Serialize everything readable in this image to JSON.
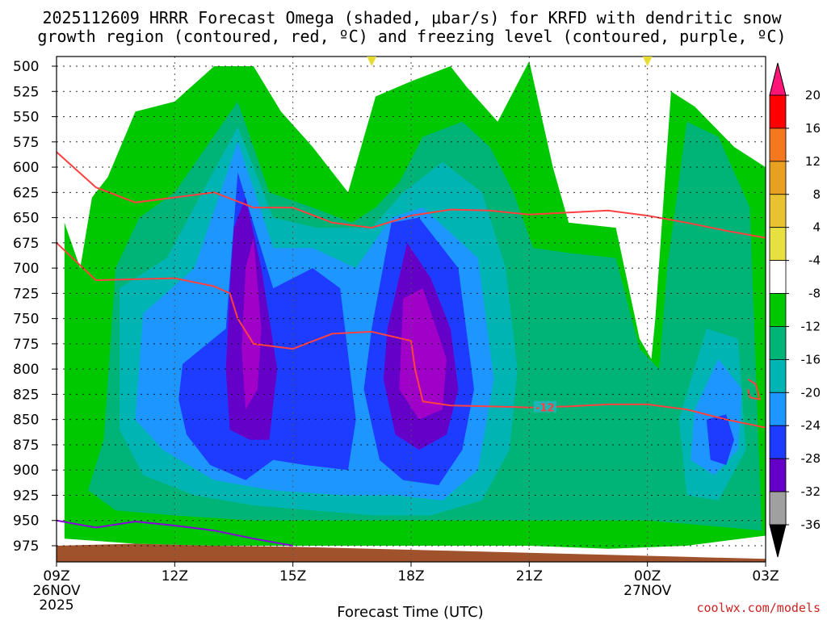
{
  "chart_data": {
    "type": "heatmap",
    "title_line1": "2025112609 HRRR Forecast Omega (shaded, μbar/s) for KRFD with dendritic snow",
    "title_line2": "growth region (contoured, red, ºC) and freezing level (contoured, purple, ºC)",
    "xlabel": "Forecast Time (UTC)",
    "ylabel": "",
    "credit": "coolwx.com/models",
    "x_ticks": [
      {
        "hour": 0,
        "label": "09Z",
        "sub": "26NOV",
        "sub2": "2025"
      },
      {
        "hour": 3,
        "label": "12Z",
        "sub": "",
        "sub2": ""
      },
      {
        "hour": 6,
        "label": "15Z",
        "sub": "",
        "sub2": ""
      },
      {
        "hour": 9,
        "label": "18Z",
        "sub": "",
        "sub2": ""
      },
      {
        "hour": 12,
        "label": "21Z",
        "sub": "",
        "sub2": ""
      },
      {
        "hour": 15,
        "label": "00Z",
        "sub": "27NOV",
        "sub2": ""
      },
      {
        "hour": 18,
        "label": "03Z",
        "sub": "",
        "sub2": ""
      }
    ],
    "y_ticks": [
      500,
      525,
      550,
      575,
      600,
      625,
      650,
      675,
      700,
      725,
      750,
      775,
      800,
      825,
      850,
      875,
      900,
      925,
      950,
      975
    ],
    "x_range_hours": [
      0,
      18
    ],
    "y_range_hpa": [
      500,
      975
    ],
    "grid": true,
    "colorbar": {
      "labels": [
        "20",
        "16",
        "12",
        "8",
        "4",
        "-4",
        "-8",
        "-12",
        "-16",
        "-20",
        "-24",
        "-28",
        "-32",
        "-36"
      ],
      "colors": [
        "#ff0000",
        "#f5781e",
        "#e8a020",
        "#e8c230",
        "#e8e040",
        "#ffffff",
        "#00c800",
        "#00b478",
        "#00b4b4",
        "#1e96ff",
        "#1e3cff",
        "#6400c8",
        "#a000c8",
        "#a0a0a0"
      ],
      "top_color": "#ff1478",
      "bottom_color": "#000000"
    },
    "omega_contours": [
      {
        "level": -4,
        "color": "#00c800",
        "points": [
          [
            0.2,
            655
          ],
          [
            0.6,
            700
          ],
          [
            0.9,
            630
          ],
          [
            1.3,
            610
          ],
          [
            2,
            545
          ],
          [
            3,
            535
          ],
          [
            4,
            500
          ],
          [
            5,
            500
          ],
          [
            5.7,
            545
          ],
          [
            6.5,
            580
          ],
          [
            7.4,
            625
          ],
          [
            8.1,
            530
          ],
          [
            9,
            515
          ],
          [
            10,
            500
          ],
          [
            10.4,
            520
          ],
          [
            11.2,
            555
          ],
          [
            12,
            495
          ],
          [
            12.6,
            600
          ],
          [
            13,
            655
          ],
          [
            14.2,
            660
          ],
          [
            14.8,
            770
          ],
          [
            15.1,
            790
          ],
          [
            15.2,
            750
          ],
          [
            15.6,
            525
          ],
          [
            16.2,
            540
          ],
          [
            17.2,
            580
          ],
          [
            18,
            600
          ],
          [
            18,
            965
          ],
          [
            16,
            975
          ],
          [
            14,
            978
          ],
          [
            12,
            975
          ],
          [
            10,
            975
          ],
          [
            8,
            975
          ],
          [
            6,
            975
          ],
          [
            4,
            975
          ],
          [
            2,
            973
          ],
          [
            0.2,
            968
          ]
        ]
      },
      {
        "level": -8,
        "color": "#00b478",
        "points": [
          [
            0.8,
            920
          ],
          [
            1.2,
            870
          ],
          [
            1.5,
            700
          ],
          [
            2.1,
            650
          ],
          [
            3.0,
            625
          ],
          [
            4.6,
            535
          ],
          [
            5.4,
            625
          ],
          [
            6.5,
            640
          ],
          [
            7.5,
            655
          ],
          [
            8.1,
            640
          ],
          [
            8.7,
            615
          ],
          [
            9.3,
            570
          ],
          [
            10.3,
            555
          ],
          [
            11.0,
            580
          ],
          [
            11.6,
            625
          ],
          [
            12.1,
            680
          ],
          [
            13,
            685
          ],
          [
            14.2,
            690
          ],
          [
            14.8,
            780
          ],
          [
            15.3,
            800
          ],
          [
            15.5,
            700
          ],
          [
            16,
            555
          ],
          [
            16.8,
            570
          ],
          [
            17.6,
            640
          ],
          [
            17.9,
            960
          ],
          [
            16.5,
            955
          ],
          [
            15,
            950
          ],
          [
            13,
            950
          ],
          [
            11,
            950
          ],
          [
            9,
            950
          ],
          [
            7,
            950
          ],
          [
            5,
            950
          ],
          [
            3,
            945
          ],
          [
            1.5,
            940
          ]
        ]
      },
      {
        "level": -12,
        "color": "#00b4b4",
        "points": [
          [
            1.6,
            860
          ],
          [
            1.6,
            720
          ],
          [
            2.8,
            690
          ],
          [
            4.6,
            560
          ],
          [
            5.5,
            650
          ],
          [
            6.6,
            660
          ],
          [
            8,
            660
          ],
          [
            8.8,
            625
          ],
          [
            9.8,
            595
          ],
          [
            10.8,
            625
          ],
          [
            11.4,
            700
          ],
          [
            11.7,
            800
          ],
          [
            11.5,
            880
          ],
          [
            10.8,
            930
          ],
          [
            9.5,
            945
          ],
          [
            8.1,
            945
          ],
          [
            6.5,
            940
          ],
          [
            5,
            935
          ],
          [
            3.5,
            925
          ],
          [
            2.2,
            905
          ]
        ]
      },
      {
        "level": -12,
        "color": "#00b4b4",
        "points": [
          [
            15.8,
            850
          ],
          [
            16.5,
            760
          ],
          [
            17.3,
            770
          ],
          [
            17.5,
            880
          ],
          [
            16.8,
            930
          ],
          [
            16,
            925
          ]
        ]
      },
      {
        "level": -16,
        "color": "#1e96ff",
        "points": [
          [
            2.0,
            850
          ],
          [
            2.2,
            745
          ],
          [
            3.5,
            700
          ],
          [
            4.6,
            575
          ],
          [
            5.5,
            680
          ],
          [
            6.5,
            680
          ],
          [
            7.6,
            700
          ],
          [
            8.5,
            650
          ],
          [
            9.3,
            640
          ],
          [
            10.7,
            690
          ],
          [
            11.1,
            810
          ],
          [
            10.7,
            900
          ],
          [
            9.8,
            930
          ],
          [
            8.6,
            925
          ],
          [
            7.3,
            925
          ],
          [
            5.5,
            920
          ],
          [
            4.0,
            910
          ],
          [
            2.7,
            880
          ]
        ]
      },
      {
        "level": -16,
        "color": "#1e96ff",
        "points": [
          [
            16.2,
            840
          ],
          [
            16.8,
            790
          ],
          [
            17.4,
            820
          ],
          [
            17.3,
            880
          ],
          [
            16.7,
            905
          ],
          [
            16.1,
            890
          ]
        ]
      },
      {
        "level": -20,
        "color": "#1e3cff",
        "points": [
          [
            3.1,
            830
          ],
          [
            3.2,
            795
          ],
          [
            4.3,
            760
          ],
          [
            4.6,
            605
          ],
          [
            5.5,
            720
          ],
          [
            6.5,
            700
          ],
          [
            7.2,
            720
          ],
          [
            7.6,
            850
          ],
          [
            7.4,
            900
          ],
          [
            6.3,
            895
          ],
          [
            5.5,
            890
          ],
          [
            4.8,
            910
          ],
          [
            3.9,
            895
          ],
          [
            3.3,
            865
          ]
        ]
      },
      {
        "level": -20,
        "color": "#1e3cff",
        "points": [
          [
            8.0,
            760
          ],
          [
            8.5,
            655
          ],
          [
            9.2,
            650
          ],
          [
            10.2,
            700
          ],
          [
            10.6,
            820
          ],
          [
            10.3,
            880
          ],
          [
            9.7,
            915
          ],
          [
            8.8,
            910
          ],
          [
            8.2,
            890
          ],
          [
            7.8,
            820
          ]
        ]
      },
      {
        "level": -20,
        "color": "#1e3cff",
        "points": [
          [
            16.5,
            850
          ],
          [
            17.0,
            845
          ],
          [
            17.2,
            870
          ],
          [
            17.0,
            895
          ],
          [
            16.6,
            890
          ]
        ]
      },
      {
        "level": -24,
        "color": "#6400c8",
        "points": [
          [
            4.5,
            660
          ],
          [
            4.8,
            630
          ],
          [
            5.2,
            700
          ],
          [
            5.6,
            800
          ],
          [
            5.4,
            870
          ],
          [
            4.9,
            870
          ],
          [
            4.4,
            860
          ],
          [
            4.3,
            800
          ],
          [
            4.4,
            720
          ]
        ]
      },
      {
        "level": -24,
        "color": "#6400c8",
        "points": [
          [
            8.4,
            760
          ],
          [
            8.9,
            675
          ],
          [
            9.5,
            710
          ],
          [
            10.0,
            760
          ],
          [
            10.2,
            820
          ],
          [
            9.9,
            865
          ],
          [
            9.2,
            880
          ],
          [
            8.6,
            865
          ],
          [
            8.3,
            810
          ]
        ]
      },
      {
        "level": -28,
        "color": "#a000c8",
        "points": [
          [
            4.8,
            700
          ],
          [
            5.0,
            670
          ],
          [
            5.2,
            760
          ],
          [
            5.1,
            820
          ],
          [
            4.8,
            840
          ],
          [
            4.7,
            780
          ]
        ]
      },
      {
        "level": -28,
        "color": "#a000c8",
        "points": [
          [
            8.8,
            730
          ],
          [
            9.3,
            720
          ],
          [
            9.9,
            790
          ],
          [
            9.8,
            840
          ],
          [
            9.2,
            850
          ],
          [
            8.7,
            820
          ]
        ]
      }
    ],
    "dgz_contours": [
      {
        "color": "#ff4040",
        "points": [
          [
            0,
            585
          ],
          [
            1,
            620
          ],
          [
            2,
            635
          ],
          [
            3,
            630
          ],
          [
            4,
            625
          ],
          [
            5,
            640
          ],
          [
            6,
            640
          ],
          [
            7,
            655
          ],
          [
            8,
            660
          ],
          [
            9,
            648
          ],
          [
            10,
            642
          ],
          [
            11,
            643
          ],
          [
            12,
            647
          ],
          [
            13,
            645
          ],
          [
            14,
            643
          ],
          [
            15,
            648
          ],
          [
            16,
            655
          ],
          [
            17,
            663
          ],
          [
            18,
            670
          ]
        ]
      },
      {
        "color": "#ff4040",
        "label": "-12",
        "points": [
          [
            0,
            675
          ],
          [
            1,
            712
          ],
          [
            2,
            711
          ],
          [
            3,
            710
          ],
          [
            4,
            718
          ],
          [
            4.4,
            725
          ],
          [
            4.6,
            750
          ],
          [
            5,
            775
          ],
          [
            6,
            780
          ],
          [
            7,
            765
          ],
          [
            8,
            763
          ],
          [
            9,
            772
          ],
          [
            9.1,
            800
          ],
          [
            9.3,
            832
          ],
          [
            10,
            836
          ],
          [
            11,
            837
          ],
          [
            12,
            838
          ],
          [
            13,
            837
          ],
          [
            14,
            835
          ],
          [
            15,
            835
          ],
          [
            16,
            840
          ],
          [
            17,
            850
          ],
          [
            18,
            858
          ]
        ]
      },
      {
        "color": "#ff4040",
        "points": [
          [
            17.55,
            810
          ],
          [
            17.75,
            815
          ],
          [
            17.85,
            830
          ],
          [
            17.6,
            828
          ],
          [
            17.55,
            820
          ]
        ]
      }
    ],
    "freezing_level": {
      "color": "#8800dd",
      "points": [
        [
          0,
          950
        ],
        [
          1,
          957
        ],
        [
          2,
          951
        ],
        [
          3,
          955
        ],
        [
          4,
          960
        ],
        [
          5,
          968
        ],
        [
          6,
          975
        ]
      ]
    },
    "ground": {
      "color": "#a0522d",
      "top_points": [
        [
          0,
          975
        ],
        [
          2,
          973
        ],
        [
          4,
          975
        ],
        [
          6,
          976
        ],
        [
          8,
          978
        ],
        [
          10,
          980
        ],
        [
          12,
          982
        ],
        [
          14,
          984
        ],
        [
          16,
          986
        ],
        [
          18,
          988
        ]
      ]
    },
    "sounding_markers_hours": [
      8,
      15
    ]
  }
}
